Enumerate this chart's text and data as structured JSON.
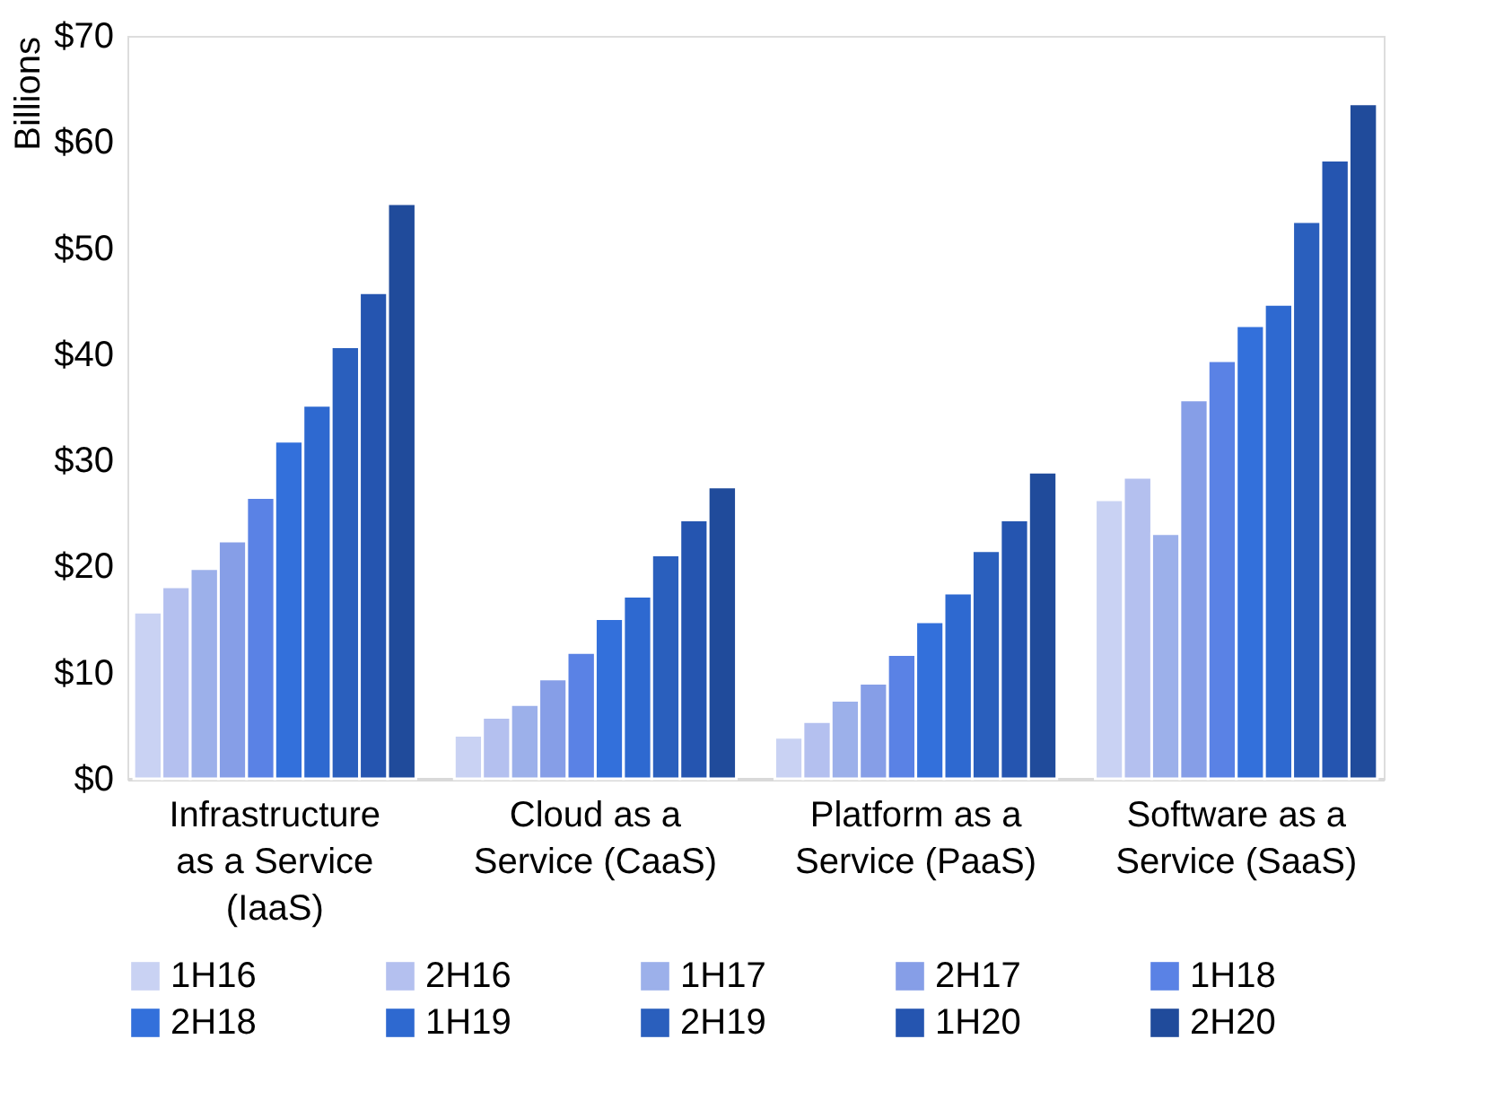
{
  "chart_data": {
    "type": "bar",
    "ylabel": "Billions",
    "categories": [
      "Infrastructure as a Service (IaaS)",
      "Cloud as a Service (CaaS)",
      "Platform as a Service (PaaS)",
      "Software as a Service (SaaS)"
    ],
    "series": [
      {
        "name": "1H16",
        "color": "#c9d2f3",
        "values": [
          15.7,
          4.1,
          3.9,
          26.3
        ]
      },
      {
        "name": "2H16",
        "color": "#b4c0ef",
        "values": [
          18.1,
          5.8,
          5.4,
          28.4
        ]
      },
      {
        "name": "1H17",
        "color": "#9cb0ea",
        "values": [
          19.8,
          7.0,
          7.4,
          23.1
        ]
      },
      {
        "name": "2H17",
        "color": "#869ee7",
        "values": [
          22.4,
          9.4,
          9.0,
          35.7
        ]
      },
      {
        "name": "1H18",
        "color": "#5a82e5",
        "values": [
          26.5,
          11.9,
          11.7,
          39.4
        ]
      },
      {
        "name": "2H18",
        "color": "#3370db",
        "values": [
          31.8,
          15.1,
          14.8,
          42.7
        ]
      },
      {
        "name": "1H19",
        "color": "#2e69d0",
        "values": [
          35.2,
          17.2,
          17.5,
          44.7
        ]
      },
      {
        "name": "2H19",
        "color": "#2a5fbd",
        "values": [
          40.7,
          21.1,
          21.5,
          52.5
        ]
      },
      {
        "name": "1H20",
        "color": "#2555b0",
        "values": [
          45.8,
          24.4,
          24.4,
          58.3
        ]
      },
      {
        "name": "2H20",
        "color": "#204b9b",
        "values": [
          54.2,
          27.5,
          28.9,
          63.6
        ]
      }
    ],
    "ylim": [
      0,
      70
    ],
    "yticks": [
      {
        "value": 0,
        "label": "$0"
      },
      {
        "value": 10,
        "label": "$10"
      },
      {
        "value": 20,
        "label": "$20"
      },
      {
        "value": 30,
        "label": "$30"
      },
      {
        "value": 40,
        "label": "$40"
      },
      {
        "value": 50,
        "label": "$50"
      },
      {
        "value": 60,
        "label": "$60"
      },
      {
        "value": 70,
        "label": "$70"
      }
    ],
    "grid": false,
    "legend": "bottom"
  }
}
